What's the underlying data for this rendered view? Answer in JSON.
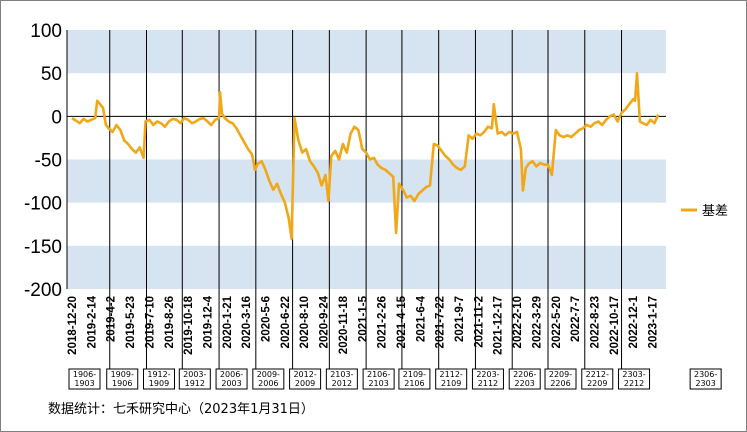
{
  "chart_data": {
    "type": "line",
    "title": "",
    "xlabel": "",
    "ylabel": "",
    "ylim": [
      -200,
      100
    ],
    "yticks": [
      -200,
      -150,
      -100,
      -50,
      0,
      50,
      100
    ],
    "bands": [
      [
        50,
        100
      ],
      [
        -100,
        -50
      ],
      [
        -200,
        -150
      ]
    ],
    "grid": false,
    "legend_position": "right",
    "colors": {
      "series": "#f0a818",
      "band": "#d6e3f0",
      "axis": "#000000",
      "frame": "#7f7f7f"
    },
    "x_tick_labels": [
      "2018-12-20",
      "2019-2-14",
      "2019-4-2",
      "2019-5-23",
      "2019-7-10",
      "2019-8-26",
      "2019-10-18",
      "2019-12-4",
      "2020-1-21",
      "2020-3-16",
      "2020-5-6",
      "2020-6-22",
      "2020-8-10",
      "2020-9-24",
      "2020-11-18",
      "2021-1-5",
      "2021-2-26",
      "2021-4-15",
      "2021-6-4",
      "2021-7-22",
      "2021-9-7",
      "2021-11-2",
      "2021-12-17",
      "2022-2-10",
      "2022-3-29",
      "2022-5-20",
      "2022-7-7",
      "2022-8-23",
      "2022-10-17",
      "2022-12-1",
      "2023-1-17"
    ],
    "contract_rolls": [
      {
        "label": "1906-\n1903",
        "x_index": 0
      },
      {
        "label": "1909-\n1906",
        "x_index": 1.95
      },
      {
        "label": "1912-\n1909",
        "x_index": 3.85
      },
      {
        "label": "2003-\n1912",
        "x_index": 5.7
      },
      {
        "label": "2006-\n2003",
        "x_index": 7.6
      },
      {
        "label": "2009-\n2006",
        "x_index": 9.5
      },
      {
        "label": "2012-\n2009",
        "x_index": 11.4
      },
      {
        "label": "2103-\n2012",
        "x_index": 13.3
      },
      {
        "label": "2106-\n2103",
        "x_index": 15.2
      },
      {
        "label": "2109-\n2106",
        "x_index": 17.05
      },
      {
        "label": "2112-\n2109",
        "x_index": 18.95
      },
      {
        "label": "2203-\n2112",
        "x_index": 20.85
      },
      {
        "label": "2206-\n2203",
        "x_index": 22.75
      },
      {
        "label": "2209-\n2206",
        "x_index": 24.6
      },
      {
        "label": "2212-\n2209",
        "x_index": 26.5
      },
      {
        "label": "2303-\n2212",
        "x_index": 28.4
      },
      {
        "label": "2306-\n2303",
        "x_index": 32.1
      }
    ],
    "series": [
      {
        "name": "基差",
        "points": [
          [
            0.0,
            -2
          ],
          [
            0.2,
            -5
          ],
          [
            0.4,
            -8
          ],
          [
            0.6,
            -3
          ],
          [
            0.8,
            -6
          ],
          [
            1.0,
            -4
          ],
          [
            1.2,
            -2
          ],
          [
            1.3,
            18
          ],
          [
            1.45,
            14
          ],
          [
            1.6,
            10
          ],
          [
            1.75,
            -10
          ],
          [
            1.9,
            -14
          ],
          [
            2.1,
            -18
          ],
          [
            2.3,
            -10
          ],
          [
            2.5,
            -16
          ],
          [
            2.7,
            -28
          ],
          [
            2.9,
            -32
          ],
          [
            3.1,
            -38
          ],
          [
            3.3,
            -42
          ],
          [
            3.5,
            -36
          ],
          [
            3.7,
            -48
          ],
          [
            3.8,
            -6
          ],
          [
            4.0,
            -4
          ],
          [
            4.2,
            -10
          ],
          [
            4.4,
            -6
          ],
          [
            4.6,
            -8
          ],
          [
            4.8,
            -12
          ],
          [
            5.0,
            -6
          ],
          [
            5.2,
            -3
          ],
          [
            5.4,
            -4
          ],
          [
            5.6,
            -8
          ],
          [
            5.8,
            -2
          ],
          [
            6.0,
            -4
          ],
          [
            6.2,
            -8
          ],
          [
            6.4,
            -6
          ],
          [
            6.6,
            -3
          ],
          [
            6.8,
            -2
          ],
          [
            7.0,
            -6
          ],
          [
            7.2,
            -10
          ],
          [
            7.4,
            -4
          ],
          [
            7.6,
            -2
          ],
          [
            7.65,
            28
          ],
          [
            7.75,
            3
          ],
          [
            7.9,
            -2
          ],
          [
            8.1,
            -6
          ],
          [
            8.3,
            -8
          ],
          [
            8.5,
            -14
          ],
          [
            8.7,
            -22
          ],
          [
            8.9,
            -30
          ],
          [
            9.1,
            -38
          ],
          [
            9.3,
            -44
          ],
          [
            9.45,
            -62
          ],
          [
            9.6,
            -55
          ],
          [
            9.8,
            -52
          ],
          [
            10.0,
            -62
          ],
          [
            10.2,
            -75
          ],
          [
            10.4,
            -85
          ],
          [
            10.6,
            -78
          ],
          [
            10.8,
            -90
          ],
          [
            11.0,
            -100
          ],
          [
            11.2,
            -118
          ],
          [
            11.35,
            -142
          ],
          [
            11.5,
            -2
          ],
          [
            11.7,
            -28
          ],
          [
            11.9,
            -42
          ],
          [
            12.1,
            -38
          ],
          [
            12.3,
            -52
          ],
          [
            12.5,
            -58
          ],
          [
            12.7,
            -65
          ],
          [
            12.9,
            -80
          ],
          [
            13.1,
            -68
          ],
          [
            13.25,
            -98
          ],
          [
            13.4,
            -46
          ],
          [
            13.6,
            -40
          ],
          [
            13.8,
            -50
          ],
          [
            14.0,
            -32
          ],
          [
            14.2,
            -42
          ],
          [
            14.4,
            -20
          ],
          [
            14.6,
            -12
          ],
          [
            14.8,
            -16
          ],
          [
            15.0,
            -38
          ],
          [
            15.2,
            -42
          ],
          [
            15.4,
            -50
          ],
          [
            15.6,
            -48
          ],
          [
            15.8,
            -56
          ],
          [
            16.0,
            -60
          ],
          [
            16.2,
            -62
          ],
          [
            16.4,
            -66
          ],
          [
            16.6,
            -70
          ],
          [
            16.75,
            -135
          ],
          [
            16.9,
            -78
          ],
          [
            17.1,
            -85
          ],
          [
            17.3,
            -94
          ],
          [
            17.5,
            -92
          ],
          [
            17.7,
            -98
          ],
          [
            17.9,
            -90
          ],
          [
            18.1,
            -86
          ],
          [
            18.3,
            -82
          ],
          [
            18.5,
            -80
          ],
          [
            18.7,
            -32
          ],
          [
            18.9,
            -34
          ],
          [
            19.1,
            -40
          ],
          [
            19.3,
            -46
          ],
          [
            19.5,
            -50
          ],
          [
            19.7,
            -56
          ],
          [
            19.9,
            -60
          ],
          [
            20.1,
            -62
          ],
          [
            20.3,
            -58
          ],
          [
            20.5,
            -22
          ],
          [
            20.7,
            -26
          ],
          [
            20.9,
            -20
          ],
          [
            21.1,
            -22
          ],
          [
            21.3,
            -18
          ],
          [
            21.5,
            -12
          ],
          [
            21.7,
            -14
          ],
          [
            21.8,
            14
          ],
          [
            21.9,
            -4
          ],
          [
            22.0,
            -20
          ],
          [
            22.2,
            -18
          ],
          [
            22.4,
            -22
          ],
          [
            22.6,
            -18
          ],
          [
            22.8,
            -20
          ],
          [
            23.0,
            -18
          ],
          [
            23.2,
            -38
          ],
          [
            23.3,
            -86
          ],
          [
            23.45,
            -60
          ],
          [
            23.6,
            -55
          ],
          [
            23.8,
            -52
          ],
          [
            24.0,
            -58
          ],
          [
            24.2,
            -54
          ],
          [
            24.4,
            -56
          ],
          [
            24.6,
            -56
          ],
          [
            24.8,
            -68
          ],
          [
            25.0,
            -16
          ],
          [
            25.2,
            -22
          ],
          [
            25.4,
            -24
          ],
          [
            25.6,
            -22
          ],
          [
            25.8,
            -24
          ],
          [
            26.0,
            -20
          ],
          [
            26.2,
            -16
          ],
          [
            26.4,
            -14
          ],
          [
            26.6,
            -10
          ],
          [
            26.8,
            -12
          ],
          [
            27.0,
            -8
          ],
          [
            27.2,
            -6
          ],
          [
            27.4,
            -10
          ],
          [
            27.6,
            -4
          ],
          [
            27.8,
            0
          ],
          [
            28.0,
            2
          ],
          [
            28.2,
            -6
          ],
          [
            28.4,
            4
          ],
          [
            28.6,
            8
          ],
          [
            28.8,
            14
          ],
          [
            29.0,
            20
          ],
          [
            29.1,
            18
          ],
          [
            29.2,
            50
          ],
          [
            29.35,
            -6
          ],
          [
            29.5,
            -8
          ],
          [
            29.7,
            -10
          ],
          [
            29.9,
            -4
          ],
          [
            30.1,
            -8
          ],
          [
            30.3,
            2
          ]
        ]
      }
    ]
  },
  "source_note": "数据统计：七禾研究中心（2023年1月31日）"
}
